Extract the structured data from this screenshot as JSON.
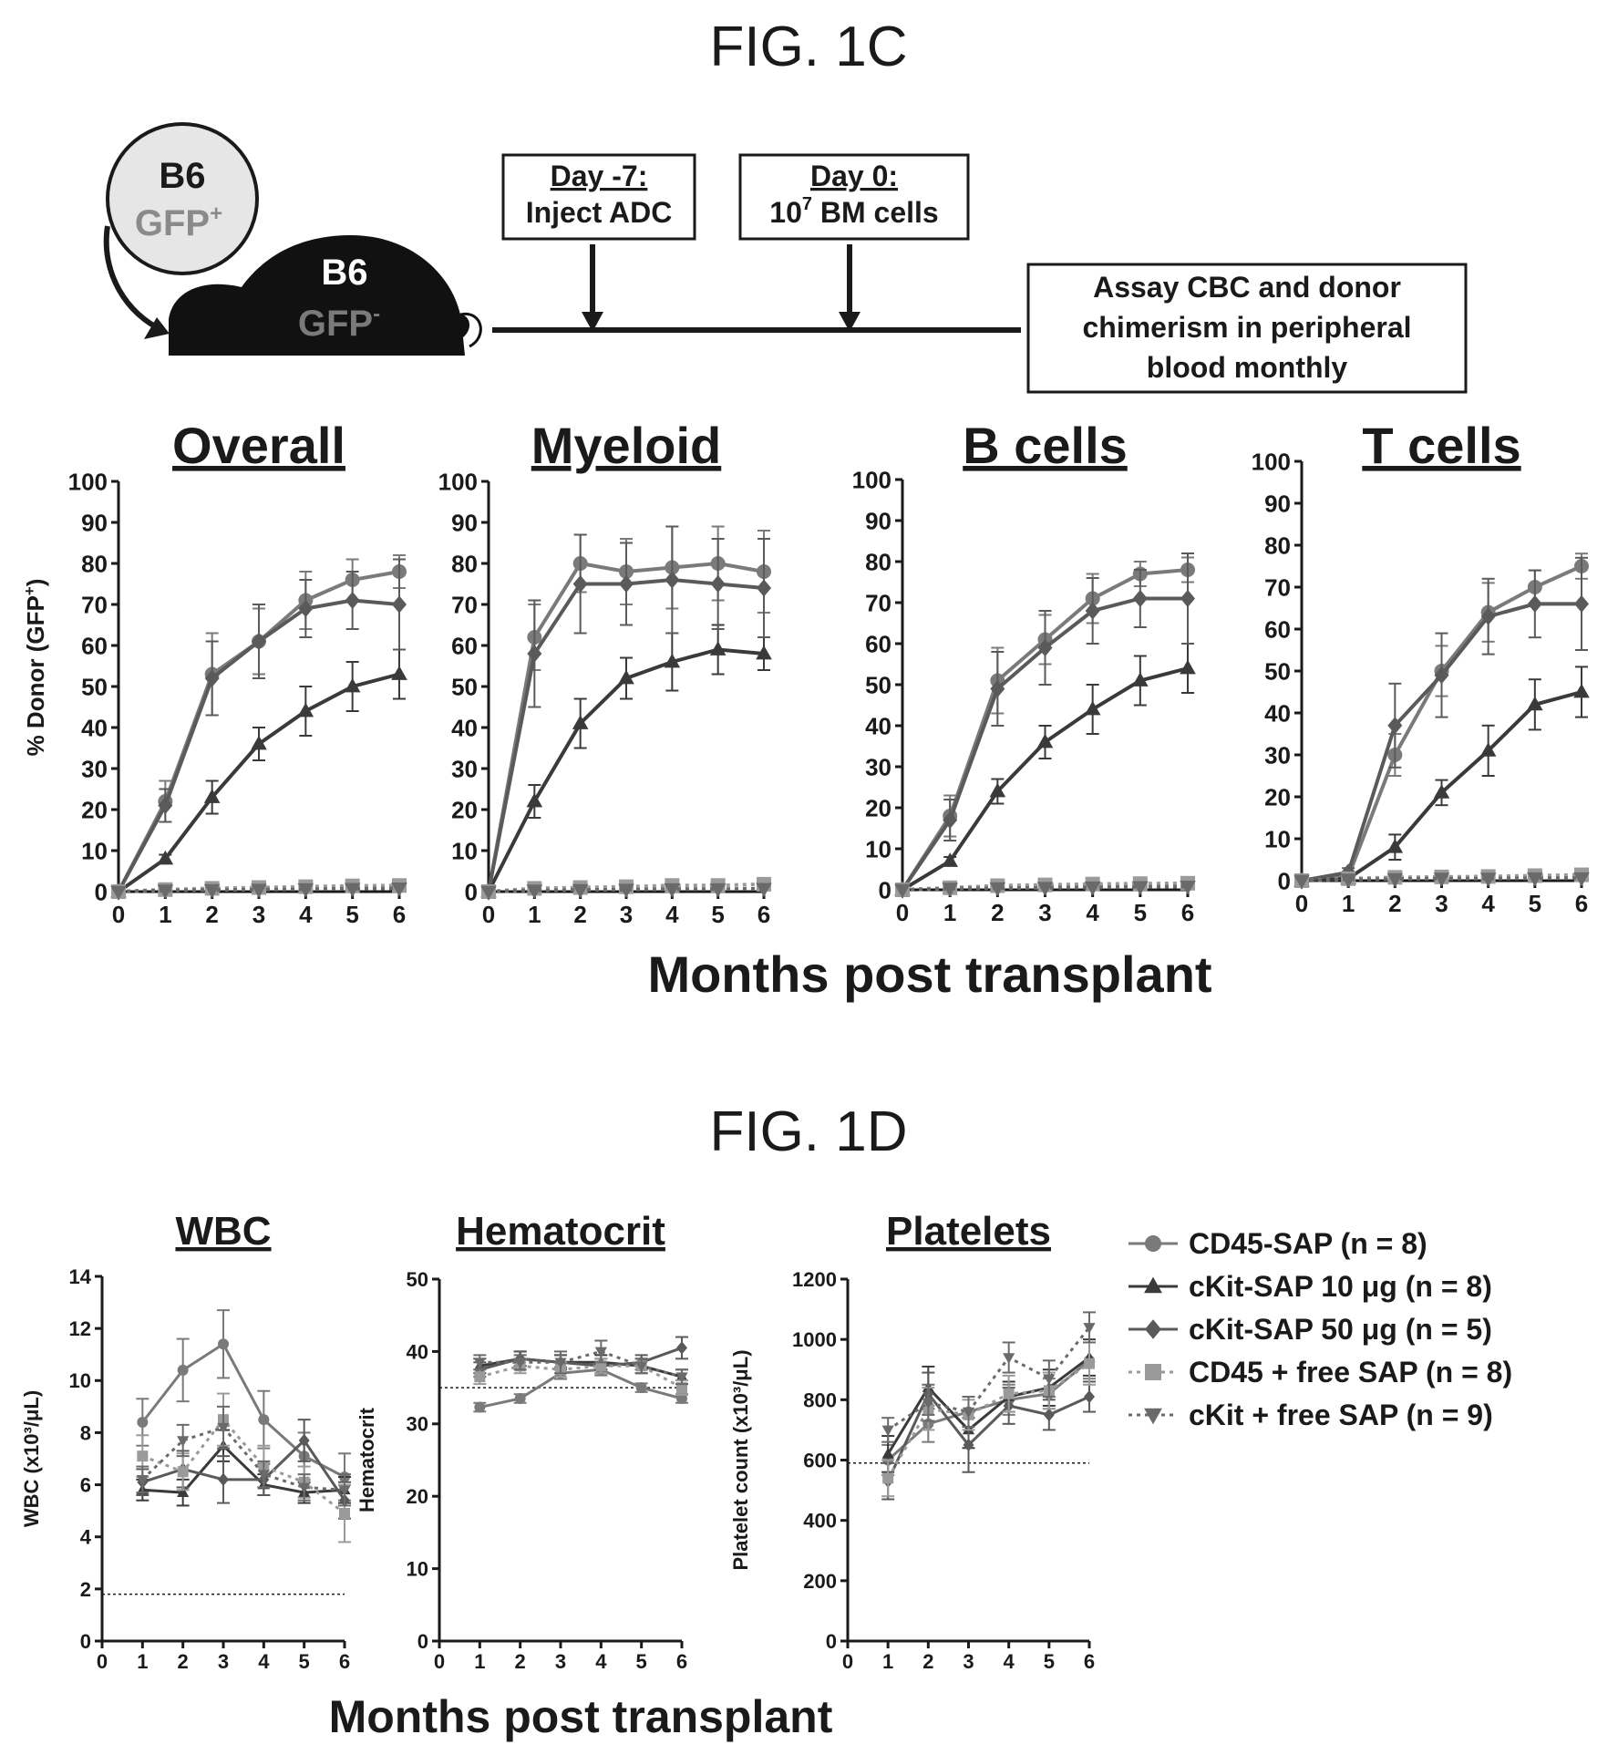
{
  "fig1c": {
    "title": "FIG. 1C",
    "schematic": {
      "donor_line1": "B6",
      "donor_line2": "GFP",
      "donor_sup": "+",
      "recipient_line1": "B6",
      "recipient_line2": "GFP",
      "recipient_sup": "-",
      "box1_line1": "Day -7:",
      "box1_line2": "Inject  ADC",
      "box2_line1": "Day 0:",
      "box2_line2_a": "10",
      "box2_line2_sup": "7",
      "box2_line2_b": " BM cells",
      "box3_line1": "Assay  CBC and donor",
      "box3_line2": "chimerism  in peripheral",
      "box3_line3": "blood monthly"
    },
    "ylabel": "% Donor (GFP",
    "ylabel_sup": "+",
    "ylabel_end": ")",
    "xlabel": "Months post transplant"
  },
  "fig1d": {
    "title": "FIG. 1D",
    "xlabel": "Months post transplant"
  },
  "legend": [
    {
      "label": "CD45-SAP (n = 8)",
      "color": "#7a7a7a",
      "marker": "circle",
      "dash": false
    },
    {
      "label": "cKit-SAP 10 μg (n = 8)",
      "color": "#3a3a3a",
      "marker": "triangle-up",
      "dash": false
    },
    {
      "label": "cKit-SAP 50 μg (n = 5)",
      "color": "#5a5a5a",
      "marker": "diamond",
      "dash": false
    },
    {
      "label": "CD45 + free SAP (n = 8)",
      "color": "#9a9a9a",
      "marker": "square",
      "dash": true
    },
    {
      "label": "cKit + free SAP (n = 9)",
      "color": "#6a6a6a",
      "marker": "triangle-down",
      "dash": true
    }
  ],
  "chart_data": [
    {
      "type": "line",
      "title": "Overall",
      "ylabel": "% Donor (GFP+)",
      "xlabel": "Months post transplant",
      "x": [
        0,
        1,
        2,
        3,
        4,
        5,
        6
      ],
      "xlim": [
        0,
        6
      ],
      "ylim": [
        0,
        100
      ],
      "yticks": [
        0,
        10,
        20,
        30,
        40,
        50,
        60,
        70,
        80,
        90,
        100
      ],
      "series": [
        {
          "name": "CD45-SAP (n = 8)",
          "values": [
            0,
            22,
            53,
            61,
            71,
            76,
            78
          ],
          "err": [
            0,
            5,
            10,
            8,
            7,
            5,
            4
          ]
        },
        {
          "name": "cKit-SAP 10 μg (n = 8)",
          "values": [
            0,
            8,
            23,
            36,
            44,
            50,
            53
          ],
          "err": [
            0,
            1,
            4,
            4,
            6,
            6,
            6
          ]
        },
        {
          "name": "cKit-SAP 50 μg (n = 5)",
          "values": [
            0,
            21,
            52,
            61,
            69,
            71,
            70
          ],
          "err": [
            0,
            4,
            9,
            9,
            7,
            7,
            11
          ]
        },
        {
          "name": "CD45 + free SAP (n = 8)",
          "values": [
            0,
            0.5,
            0.8,
            1,
            1.2,
            1.4,
            1.5
          ],
          "err": [
            0,
            0.5,
            0.5,
            0.5,
            0.5,
            0.5,
            0.5
          ]
        },
        {
          "name": "cKit + free SAP (n = 9)",
          "values": [
            0,
            0.3,
            0.4,
            0.5,
            0.6,
            0.7,
            0.8
          ],
          "err": [
            0,
            0.3,
            0.3,
            0.3,
            0.3,
            0.3,
            0.3
          ]
        }
      ]
    },
    {
      "type": "line",
      "title": "Myeloid",
      "x": [
        0,
        1,
        2,
        3,
        4,
        5,
        6
      ],
      "xlim": [
        0,
        6
      ],
      "ylim": [
        0,
        100
      ],
      "yticks": [
        0,
        10,
        20,
        30,
        40,
        50,
        60,
        70,
        80,
        90,
        100
      ],
      "series": [
        {
          "name": "CD45-SAP (n = 8)",
          "values": [
            0,
            62,
            80,
            78,
            79,
            80,
            78
          ],
          "err": [
            0,
            8,
            7,
            8,
            10,
            9,
            10
          ]
        },
        {
          "name": "cKit-SAP 10 μg (n = 8)",
          "values": [
            0,
            22,
            41,
            52,
            56,
            59,
            58
          ],
          "err": [
            0,
            4,
            6,
            5,
            7,
            6,
            4
          ]
        },
        {
          "name": "cKit-SAP 50 μg (n = 5)",
          "values": [
            0,
            58,
            75,
            75,
            76,
            75,
            74
          ],
          "err": [
            0,
            13,
            12,
            10,
            13,
            11,
            12
          ]
        },
        {
          "name": "CD45 + free SAP (n = 8)",
          "values": [
            0,
            0.8,
            1,
            1.2,
            1.5,
            1.5,
            1.8
          ],
          "err": [
            0,
            0.5,
            0.5,
            0.5,
            0.5,
            0.5,
            0.5
          ]
        },
        {
          "name": "cKit + free SAP (n = 9)",
          "values": [
            0,
            0.3,
            0.4,
            0.5,
            0.6,
            0.6,
            0.7
          ],
          "err": [
            0,
            0.3,
            0.3,
            0.3,
            0.3,
            0.3,
            0.3
          ]
        }
      ]
    },
    {
      "type": "line",
      "title": "B cells",
      "x": [
        0,
        1,
        2,
        3,
        4,
        5,
        6
      ],
      "xlim": [
        0,
        6
      ],
      "ylim": [
        0,
        100
      ],
      "yticks": [
        0,
        10,
        20,
        30,
        40,
        50,
        60,
        70,
        80,
        90,
        100
      ],
      "series": [
        {
          "name": "CD45-SAP (n = 8)",
          "values": [
            0,
            18,
            51,
            61,
            71,
            77,
            78
          ],
          "err": [
            0,
            5,
            8,
            6,
            6,
            3,
            3
          ]
        },
        {
          "name": "cKit-SAP 10 μg (n = 8)",
          "values": [
            0,
            7,
            24,
            36,
            44,
            51,
            54
          ],
          "err": [
            0,
            1,
            3,
            4,
            6,
            6,
            6
          ]
        },
        {
          "name": "cKit-SAP 50 μg (n = 5)",
          "values": [
            0,
            17,
            49,
            59,
            68,
            71,
            71
          ],
          "err": [
            0,
            5,
            9,
            9,
            8,
            7,
            11
          ]
        },
        {
          "name": "CD45 + free SAP (n = 8)",
          "values": [
            0,
            0.5,
            1,
            1.2,
            1.4,
            1.5,
            1.6
          ],
          "err": [
            0,
            0.5,
            0.5,
            0.5,
            0.5,
            0.5,
            0.5
          ]
        },
        {
          "name": "cKit + free SAP (n = 9)",
          "values": [
            0,
            0.3,
            0.4,
            0.5,
            0.6,
            0.7,
            0.8
          ],
          "err": [
            0,
            0.3,
            0.3,
            0.3,
            0.3,
            0.3,
            0.3
          ]
        }
      ]
    },
    {
      "type": "line",
      "title": "T cells",
      "x": [
        0,
        1,
        2,
        3,
        4,
        5,
        6
      ],
      "xlim": [
        0,
        6
      ],
      "ylim": [
        0,
        100
      ],
      "yticks": [
        0,
        10,
        20,
        30,
        40,
        50,
        60,
        70,
        80,
        90,
        100
      ],
      "series": [
        {
          "name": "CD45-SAP (n = 8)",
          "values": [
            0,
            1,
            30,
            50,
            64,
            70,
            75
          ],
          "err": [
            0,
            0.5,
            5,
            6,
            7,
            4,
            3
          ]
        },
        {
          "name": "cKit-SAP 10 μg (n = 8)",
          "values": [
            0,
            0.5,
            8,
            21,
            31,
            42,
            45
          ],
          "err": [
            0,
            0.3,
            3,
            3,
            6,
            6,
            6
          ]
        },
        {
          "name": "cKit-SAP 50 μg (n = 5)",
          "values": [
            0,
            2,
            37,
            49,
            63,
            66,
            66
          ],
          "err": [
            0,
            1,
            10,
            10,
            9,
            8,
            11
          ]
        },
        {
          "name": "CD45 + free SAP (n = 8)",
          "values": [
            0,
            0.5,
            0.8,
            0.9,
            1,
            1.2,
            1.4
          ],
          "err": [
            0,
            0.5,
            0.5,
            0.5,
            0.5,
            0.5,
            0.5
          ]
        },
        {
          "name": "cKit + free SAP (n = 9)",
          "values": [
            0,
            0.3,
            0.4,
            0.5,
            0.5,
            0.6,
            0.6
          ],
          "err": [
            0,
            0.3,
            0.3,
            0.3,
            0.3,
            0.3,
            0.3
          ]
        }
      ]
    },
    {
      "type": "line",
      "title": "WBC",
      "ylabel": "WBC (x10³/μL)",
      "x": [
        1,
        2,
        3,
        4,
        5,
        6
      ],
      "xlim": [
        0,
        6
      ],
      "ylim": [
        0,
        14
      ],
      "yticks": [
        0,
        2,
        4,
        6,
        8,
        10,
        12,
        14
      ],
      "reference_line": 1.8,
      "series": [
        {
          "name": "CD45-SAP (n = 8)",
          "values": [
            8.4,
            10.4,
            11.4,
            8.5,
            7.1,
            6.3
          ],
          "err": [
            0.9,
            1.2,
            1.3,
            1.1,
            0.9,
            0.9
          ]
        },
        {
          "name": "cKit-SAP 10 μg (n = 8)",
          "values": [
            5.8,
            5.7,
            7.5,
            6.0,
            5.7,
            5.8
          ],
          "err": [
            0.4,
            0.5,
            0.6,
            0.4,
            0.4,
            0.5
          ]
        },
        {
          "name": "cKit-SAP 50 μg (n = 5)",
          "values": [
            6.1,
            6.6,
            6.2,
            6.2,
            7.7,
            5.4
          ],
          "err": [
            0.5,
            0.7,
            0.9,
            0.6,
            0.8,
            0.7
          ]
        },
        {
          "name": "CD45 + free SAP (n = 8)",
          "values": [
            7.1,
            6.5,
            8.5,
            6.7,
            6.1,
            4.9
          ],
          "err": [
            0.8,
            0.7,
            1.0,
            0.8,
            0.6,
            1.1
          ]
        },
        {
          "name": "cKit + free SAP (n = 9)",
          "values": [
            6.2,
            7.7,
            8.2,
            6.4,
            5.9,
            5.8
          ],
          "err": [
            0.5,
            0.6,
            0.8,
            0.5,
            0.5,
            0.6
          ]
        }
      ]
    },
    {
      "type": "line",
      "title": "Hematocrit",
      "ylabel": "Hematocrit",
      "x": [
        1,
        2,
        3,
        4,
        5,
        6
      ],
      "xlim": [
        0,
        6
      ],
      "ylim": [
        0,
        50
      ],
      "yticks": [
        0,
        10,
        20,
        30,
        40,
        50
      ],
      "reference_line": 35,
      "series": [
        {
          "name": "CD45-SAP (n = 8)",
          "values": [
            32.3,
            33.5,
            37.0,
            37.5,
            35.0,
            33.5
          ],
          "err": [
            0.6,
            0.6,
            0.8,
            0.8,
            0.6,
            0.6
          ]
        },
        {
          "name": "cKit-SAP 10 μg (n = 8)",
          "values": [
            38.0,
            39.0,
            38.5,
            38.5,
            38.0,
            36.5
          ],
          "err": [
            1,
            1,
            1,
            1,
            1,
            1
          ]
        },
        {
          "name": "cKit-SAP 50 μg (n = 5)",
          "values": [
            37.5,
            39.0,
            38.5,
            38.0,
            38.5,
            40.5
          ],
          "err": [
            1,
            1,
            1,
            1,
            1,
            1.5
          ]
        },
        {
          "name": "CD45 + free SAP (n = 8)",
          "values": [
            36.5,
            38.0,
            37.5,
            38.0,
            38.0,
            35.0
          ],
          "err": [
            1,
            1,
            1,
            1,
            1,
            1
          ]
        },
        {
          "name": "cKit + free SAP (n = 9)",
          "values": [
            38.5,
            38.5,
            38.5,
            40.0,
            38.0,
            36.5
          ],
          "err": [
            1,
            1,
            1.5,
            1.5,
            1,
            1
          ]
        }
      ]
    },
    {
      "type": "line",
      "title": "Platelets",
      "ylabel": "Platelet count (x10³/μL)",
      "x": [
        1,
        2,
        3,
        4,
        5,
        6
      ],
      "xlim": [
        0,
        6
      ],
      "ylim": [
        0,
        1200
      ],
      "yticks": [
        0,
        200,
        400,
        600,
        800,
        1000,
        1200
      ],
      "reference_line": 590,
      "series": [
        {
          "name": "CD45-SAP (n = 8)",
          "values": [
            600,
            720,
            760,
            800,
            820,
            930
          ],
          "err": [
            50,
            60,
            50,
            50,
            50,
            60
          ]
        },
        {
          "name": "cKit-SAP 10 μg (n = 8)",
          "values": [
            620,
            840,
            700,
            810,
            840,
            940
          ],
          "err": [
            60,
            70,
            60,
            50,
            60,
            60
          ]
        },
        {
          "name": "cKit-SAP 50 μg (n = 5)",
          "values": [
            530,
            820,
            650,
            780,
            750,
            810
          ],
          "err": [
            60,
            70,
            90,
            60,
            50,
            50
          ]
        },
        {
          "name": "CD45 + free SAP (n = 8)",
          "values": [
            540,
            770,
            750,
            820,
            830,
            920
          ],
          "err": [
            60,
            70,
            50,
            60,
            60,
            70
          ]
        },
        {
          "name": "cKit + free SAP (n = 9)",
          "values": [
            700,
            790,
            760,
            940,
            870,
            1040
          ],
          "err": [
            40,
            60,
            50,
            50,
            60,
            50
          ]
        }
      ]
    }
  ]
}
